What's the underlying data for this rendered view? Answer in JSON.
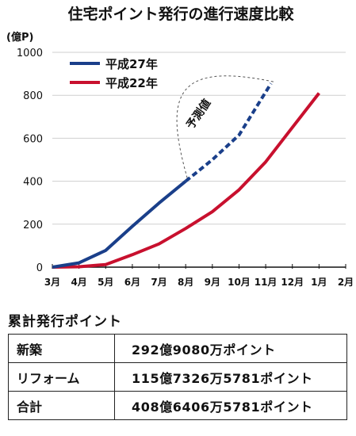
{
  "chart_data": {
    "type": "line",
    "title": "住宅ポイント発行の進行速度比較",
    "ylabel": "(億P)",
    "xlabel": "",
    "categories": [
      "3月",
      "4月",
      "5月",
      "6月",
      "7月",
      "8月",
      "9月",
      "10月",
      "11月",
      "12月",
      "1月",
      "2月"
    ],
    "ylim": [
      0,
      1000
    ],
    "yticks": [
      0,
      200,
      400,
      600,
      800,
      1000
    ],
    "grid": "horizontal",
    "legend_position": "top-left",
    "series": [
      {
        "name": "平成27年",
        "color": "#1a3f8a",
        "actual": {
          "x": [
            0,
            1,
            2,
            3,
            4,
            5
          ],
          "y": [
            0,
            20,
            78,
            190,
            298,
            400
          ]
        },
        "forecast": {
          "x": [
            5,
            6,
            7,
            8.2
          ],
          "y": [
            400,
            500,
            615,
            855
          ]
        }
      },
      {
        "name": "平成22年",
        "color": "#c8102e",
        "actual": {
          "x": [
            0,
            1,
            2,
            3,
            4,
            5,
            6,
            7,
            8,
            9,
            10
          ],
          "y": [
            0,
            2,
            12,
            58,
            108,
            180,
            258,
            360,
            490,
            650,
            810
          ]
        }
      }
    ],
    "annotation": {
      "text": "予測値"
    }
  },
  "totals": {
    "title": "累計発行ポイント",
    "rows": [
      {
        "label": "新築",
        "value": "292億9080万ポイント"
      },
      {
        "label": "リフォーム",
        "value": "115億7326万5781ポイント"
      },
      {
        "label": "合計",
        "value": "408億6406万5781ポイント"
      }
    ]
  }
}
